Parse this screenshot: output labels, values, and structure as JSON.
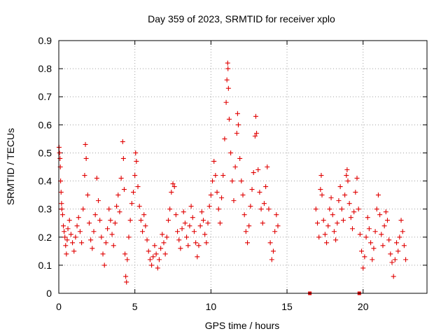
{
  "chart_data": {
    "type": "scatter",
    "title": "Day 359 of 2023, SRMTID for receiver xplo",
    "xlabel": "GPS time / hours",
    "ylabel": "SRMTID / TECUs",
    "xlim": [
      0,
      24.2
    ],
    "ylim": [
      0,
      0.9
    ],
    "xticks": [
      0,
      5,
      10,
      15,
      20
    ],
    "xtick_labels": [
      "0",
      "5",
      "10",
      "15",
      "20"
    ],
    "yticks": [
      0,
      0.1,
      0.2,
      0.3,
      0.4,
      0.5,
      0.6,
      0.7,
      0.8,
      0.9
    ],
    "ytick_labels": [
      "0",
      "0.1",
      "0.2",
      "0.3",
      "0.4",
      "0.5",
      "0.6",
      "0.7",
      "0.8",
      "0.9"
    ],
    "grid": true,
    "marker": "plus",
    "color": "#e00000",
    "series": [
      {
        "name": "SRMTID",
        "points": [
          [
            0.02,
            0.52
          ],
          [
            0.05,
            0.5
          ],
          [
            0.08,
            0.48
          ],
          [
            0.1,
            0.45
          ],
          [
            0.12,
            0.4
          ],
          [
            0.15,
            0.36
          ],
          [
            0.18,
            0.32
          ],
          [
            0.2,
            0.3
          ],
          [
            0.25,
            0.28
          ],
          [
            0.3,
            0.24
          ],
          [
            0.35,
            0.22
          ],
          [
            0.4,
            0.2
          ],
          [
            0.45,
            0.17
          ],
          [
            0.5,
            0.14
          ],
          [
            0.55,
            0.19
          ],
          [
            0.6,
            0.23
          ],
          [
            0.7,
            0.26
          ],
          [
            0.8,
            0.21
          ],
          [
            0.9,
            0.18
          ],
          [
            1.0,
            0.15
          ],
          [
            1.1,
            0.2
          ],
          [
            1.2,
            0.24
          ],
          [
            1.3,
            0.27
          ],
          [
            1.4,
            0.22
          ],
          [
            1.5,
            0.18
          ],
          [
            1.6,
            0.3
          ],
          [
            1.7,
            0.42
          ],
          [
            1.75,
            0.53
          ],
          [
            1.8,
            0.48
          ],
          [
            1.9,
            0.35
          ],
          [
            2.0,
            0.25
          ],
          [
            2.1,
            0.19
          ],
          [
            2.2,
            0.16
          ],
          [
            2.3,
            0.22
          ],
          [
            2.4,
            0.28
          ],
          [
            2.5,
            0.41
          ],
          [
            2.6,
            0.33
          ],
          [
            2.7,
            0.26
          ],
          [
            2.8,
            0.2
          ],
          [
            2.9,
            0.14
          ],
          [
            3.0,
            0.1
          ],
          [
            3.1,
            0.18
          ],
          [
            3.2,
            0.23
          ],
          [
            3.3,
            0.3
          ],
          [
            3.4,
            0.26
          ],
          [
            3.5,
            0.21
          ],
          [
            3.6,
            0.17
          ],
          [
            3.7,
            0.25
          ],
          [
            3.8,
            0.31
          ],
          [
            3.9,
            0.35
          ],
          [
            4.0,
            0.29
          ],
          [
            4.1,
            0.41
          ],
          [
            4.2,
            0.54
          ],
          [
            4.25,
            0.48
          ],
          [
            4.3,
            0.37
          ],
          [
            4.35,
            0.14
          ],
          [
            4.4,
            0.06
          ],
          [
            4.45,
            0.04
          ],
          [
            4.5,
            0.12
          ],
          [
            4.6,
            0.2
          ],
          [
            4.7,
            0.26
          ],
          [
            4.8,
            0.32
          ],
          [
            4.9,
            0.36
          ],
          [
            5.0,
            0.42
          ],
          [
            5.05,
            0.5
          ],
          [
            5.1,
            0.47
          ],
          [
            5.2,
            0.38
          ],
          [
            5.3,
            0.31
          ],
          [
            5.4,
            0.26
          ],
          [
            5.5,
            0.22
          ],
          [
            5.6,
            0.28
          ],
          [
            5.7,
            0.24
          ],
          [
            5.8,
            0.19
          ],
          [
            5.9,
            0.15
          ],
          [
            6.0,
            0.12
          ],
          [
            6.1,
            0.1
          ],
          [
            6.2,
            0.13
          ],
          [
            6.3,
            0.17
          ],
          [
            6.4,
            0.14
          ],
          [
            6.5,
            0.09
          ],
          [
            6.6,
            0.12
          ],
          [
            6.7,
            0.16
          ],
          [
            6.8,
            0.21
          ],
          [
            6.9,
            0.18
          ],
          [
            7.0,
            0.14
          ],
          [
            7.1,
            0.2
          ],
          [
            7.2,
            0.26
          ],
          [
            7.3,
            0.3
          ],
          [
            7.4,
            0.36
          ],
          [
            7.5,
            0.39
          ],
          [
            7.6,
            0.38
          ],
          [
            7.7,
            0.28
          ],
          [
            7.8,
            0.22
          ],
          [
            7.9,
            0.19
          ],
          [
            8.0,
            0.16
          ],
          [
            8.1,
            0.23
          ],
          [
            8.2,
            0.29
          ],
          [
            8.3,
            0.25
          ],
          [
            8.4,
            0.2
          ],
          [
            8.5,
            0.17
          ],
          [
            8.6,
            0.24
          ],
          [
            8.7,
            0.31
          ],
          [
            8.8,
            0.27
          ],
          [
            8.9,
            0.22
          ],
          [
            9.0,
            0.18
          ],
          [
            9.1,
            0.13
          ],
          [
            9.2,
            0.17
          ],
          [
            9.3,
            0.24
          ],
          [
            9.4,
            0.29
          ],
          [
            9.5,
            0.26
          ],
          [
            9.6,
            0.21
          ],
          [
            9.7,
            0.18
          ],
          [
            9.8,
            0.25
          ],
          [
            9.9,
            0.31
          ],
          [
            10.0,
            0.35
          ],
          [
            10.1,
            0.4
          ],
          [
            10.2,
            0.47
          ],
          [
            10.3,
            0.42
          ],
          [
            10.4,
            0.36
          ],
          [
            10.5,
            0.3
          ],
          [
            10.6,
            0.25
          ],
          [
            10.7,
            0.34
          ],
          [
            10.8,
            0.42
          ],
          [
            10.9,
            0.55
          ],
          [
            11.0,
            0.68
          ],
          [
            11.05,
            0.76
          ],
          [
            11.1,
            0.82
          ],
          [
            11.12,
            0.8
          ],
          [
            11.15,
            0.73
          ],
          [
            11.2,
            0.62
          ],
          [
            11.3,
            0.5
          ],
          [
            11.4,
            0.4
          ],
          [
            11.5,
            0.33
          ],
          [
            11.6,
            0.45
          ],
          [
            11.7,
            0.57
          ],
          [
            11.75,
            0.64
          ],
          [
            11.8,
            0.6
          ],
          [
            11.9,
            0.48
          ],
          [
            12.0,
            0.4
          ],
          [
            12.1,
            0.35
          ],
          [
            12.2,
            0.28
          ],
          [
            12.3,
            0.22
          ],
          [
            12.4,
            0.18
          ],
          [
            12.5,
            0.24
          ],
          [
            12.6,
            0.31
          ],
          [
            12.7,
            0.37
          ],
          [
            12.8,
            0.43
          ],
          [
            12.9,
            0.56
          ],
          [
            12.95,
            0.63
          ],
          [
            13.0,
            0.57
          ],
          [
            13.1,
            0.44
          ],
          [
            13.2,
            0.36
          ],
          [
            13.3,
            0.3
          ],
          [
            13.4,
            0.25
          ],
          [
            13.5,
            0.32
          ],
          [
            13.6,
            0.38
          ],
          [
            13.7,
            0.45
          ],
          [
            13.8,
            0.3
          ],
          [
            13.9,
            0.18
          ],
          [
            14.0,
            0.12
          ],
          [
            14.1,
            0.15
          ],
          [
            14.2,
            0.22
          ],
          [
            14.3,
            0.28
          ],
          [
            14.4,
            0.24
          ],
          [
            16.9,
            0.3
          ],
          [
            17.0,
            0.25
          ],
          [
            17.1,
            0.2
          ],
          [
            17.2,
            0.37
          ],
          [
            17.25,
            0.42
          ],
          [
            17.3,
            0.35
          ],
          [
            17.4,
            0.26
          ],
          [
            17.5,
            0.21
          ],
          [
            17.6,
            0.18
          ],
          [
            17.7,
            0.24
          ],
          [
            17.8,
            0.3
          ],
          [
            17.9,
            0.34
          ],
          [
            18.0,
            0.28
          ],
          [
            18.1,
            0.22
          ],
          [
            18.2,
            0.19
          ],
          [
            18.3,
            0.25
          ],
          [
            18.4,
            0.33
          ],
          [
            18.5,
            0.38
          ],
          [
            18.6,
            0.3
          ],
          [
            18.7,
            0.26
          ],
          [
            18.8,
            0.35
          ],
          [
            18.9,
            0.42
          ],
          [
            18.95,
            0.44
          ],
          [
            19.0,
            0.4
          ],
          [
            19.1,
            0.32
          ],
          [
            19.2,
            0.27
          ],
          [
            19.3,
            0.23
          ],
          [
            19.4,
            0.29
          ],
          [
            19.5,
            0.36
          ],
          [
            19.6,
            0.41
          ],
          [
            19.7,
            0.3
          ],
          [
            19.8,
            0.21
          ],
          [
            19.9,
            0.15
          ],
          [
            20.0,
            0.09
          ],
          [
            20.1,
            0.13
          ],
          [
            20.2,
            0.2
          ],
          [
            20.3,
            0.27
          ],
          [
            20.4,
            0.23
          ],
          [
            20.5,
            0.18
          ],
          [
            20.6,
            0.12
          ],
          [
            20.7,
            0.16
          ],
          [
            20.8,
            0.22
          ],
          [
            20.9,
            0.3
          ],
          [
            21.0,
            0.35
          ],
          [
            21.1,
            0.28
          ],
          [
            21.2,
            0.21
          ],
          [
            21.3,
            0.17
          ],
          [
            21.4,
            0.24
          ],
          [
            21.5,
            0.29
          ],
          [
            21.6,
            0.26
          ],
          [
            21.7,
            0.19
          ],
          [
            21.8,
            0.14
          ],
          [
            21.9,
            0.11
          ],
          [
            22.0,
            0.06
          ],
          [
            22.1,
            0.12
          ],
          [
            22.2,
            0.18
          ],
          [
            22.3,
            0.15
          ],
          [
            22.4,
            0.2
          ],
          [
            22.5,
            0.26
          ],
          [
            22.6,
            0.22
          ],
          [
            22.7,
            0.17
          ],
          [
            22.8,
            0.12
          ]
        ]
      }
    ],
    "marker_annotations": [
      {
        "name": "gap-marker",
        "x": 16.5,
        "y": 0.0,
        "shape": "square"
      },
      {
        "name": "gap-marker",
        "x": 19.75,
        "y": 0.0,
        "shape": "square"
      }
    ]
  }
}
